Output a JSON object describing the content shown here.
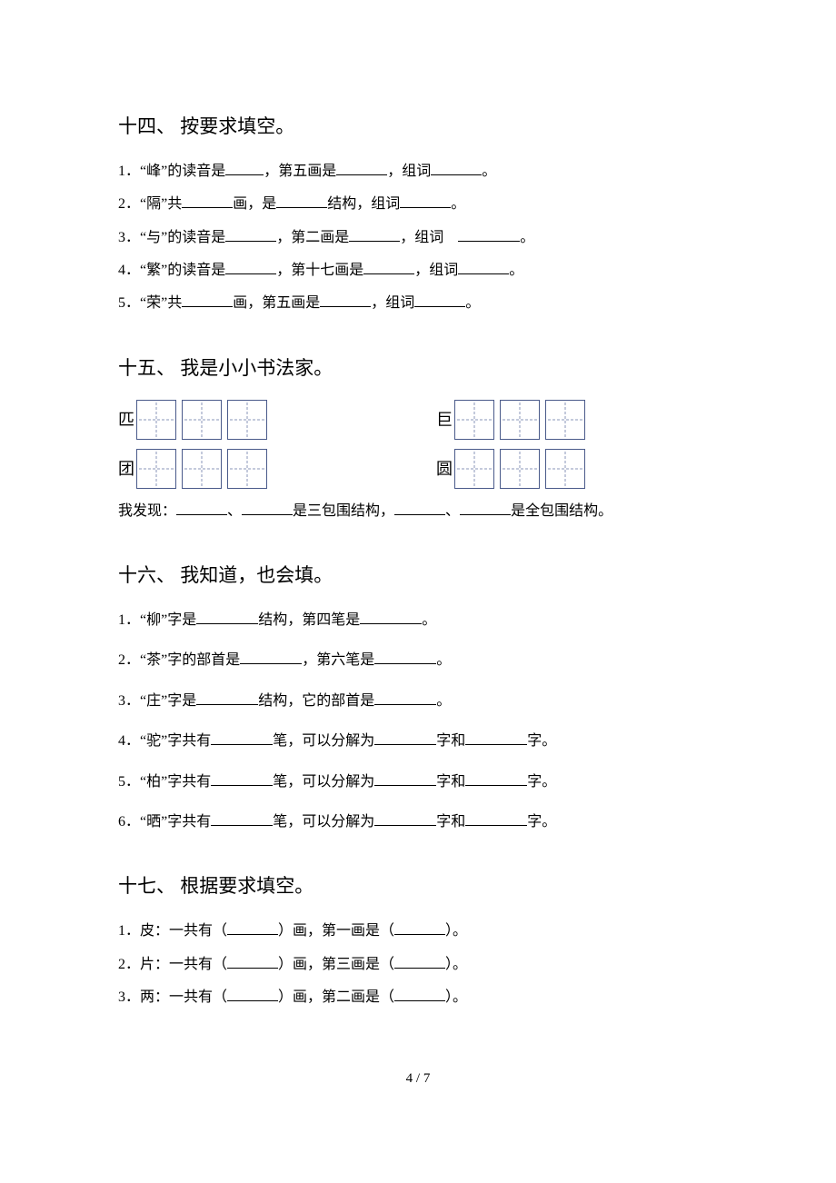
{
  "section14": {
    "title": "十四、 按要求填空。",
    "items": [
      {
        "n": "1．",
        "a": "“峰”的读音是",
        "b": "，第五画是",
        "c": "，组词",
        "d": "。"
      },
      {
        "n": "2．",
        "a": "“隔”共",
        "b": "画，是",
        "c": "结构，组词",
        "d": "。"
      },
      {
        "n": "3．",
        "a": "“与”的读音是",
        "b": "，第二画是",
        "c": "，组词",
        "d": "。"
      },
      {
        "n": "4．",
        "a": "“繁”的读音是",
        "b": "，第十七画是",
        "c": "，组词",
        "d": "。"
      },
      {
        "n": "5．",
        "a": "“荣”共",
        "b": "画，第五画是",
        "c": "，组词",
        "d": "。"
      }
    ]
  },
  "section15": {
    "title": "十五、 我是小小书法家。",
    "row1": {
      "char1": "匹",
      "char2": "巨"
    },
    "row2": {
      "char1": "团",
      "char2": "圆"
    },
    "conclusion": {
      "a": "我发现：",
      "b": "、",
      "c": "是三包围结构，",
      "d": "、",
      "e": "是全包围结构。"
    }
  },
  "section16": {
    "title": "十六、 我知道，也会填。",
    "items": [
      {
        "n": "1．",
        "a": "“柳”字是",
        "b": "结构，第四笔是",
        "c": "。"
      },
      {
        "n": "2．",
        "a": "“茶”字的部首是",
        "b": "，第六笔是",
        "c": "。"
      },
      {
        "n": "3．",
        "a": "“庄”字是",
        "b": "结构，它的部首是",
        "c": "。"
      },
      {
        "n": "4．",
        "a": "“驼”字共有",
        "b": "笔，可以分解为",
        "c": "字和",
        "d": "字。"
      },
      {
        "n": "5．",
        "a": "“柏”字共有",
        "b": "笔，可以分解为",
        "c": "字和",
        "d": "字。"
      },
      {
        "n": "6．",
        "a": "“晒”字共有",
        "b": "笔，可以分解为",
        "c": "字和",
        "d": "字。"
      }
    ]
  },
  "section17": {
    "title": "十七、 根据要求填空。",
    "items": [
      {
        "n": "1．",
        "a": "皮：一共有（",
        "b": "）画，第一画是（",
        "c": "）。"
      },
      {
        "n": "2．",
        "a": "片：一共有（",
        "b": "）画，第三画是（",
        "c": "）。"
      },
      {
        "n": "3．",
        "a": "两：一共有（",
        "b": "）画，第二画是（",
        "c": "）。"
      }
    ]
  },
  "pagenum": "4 / 7"
}
